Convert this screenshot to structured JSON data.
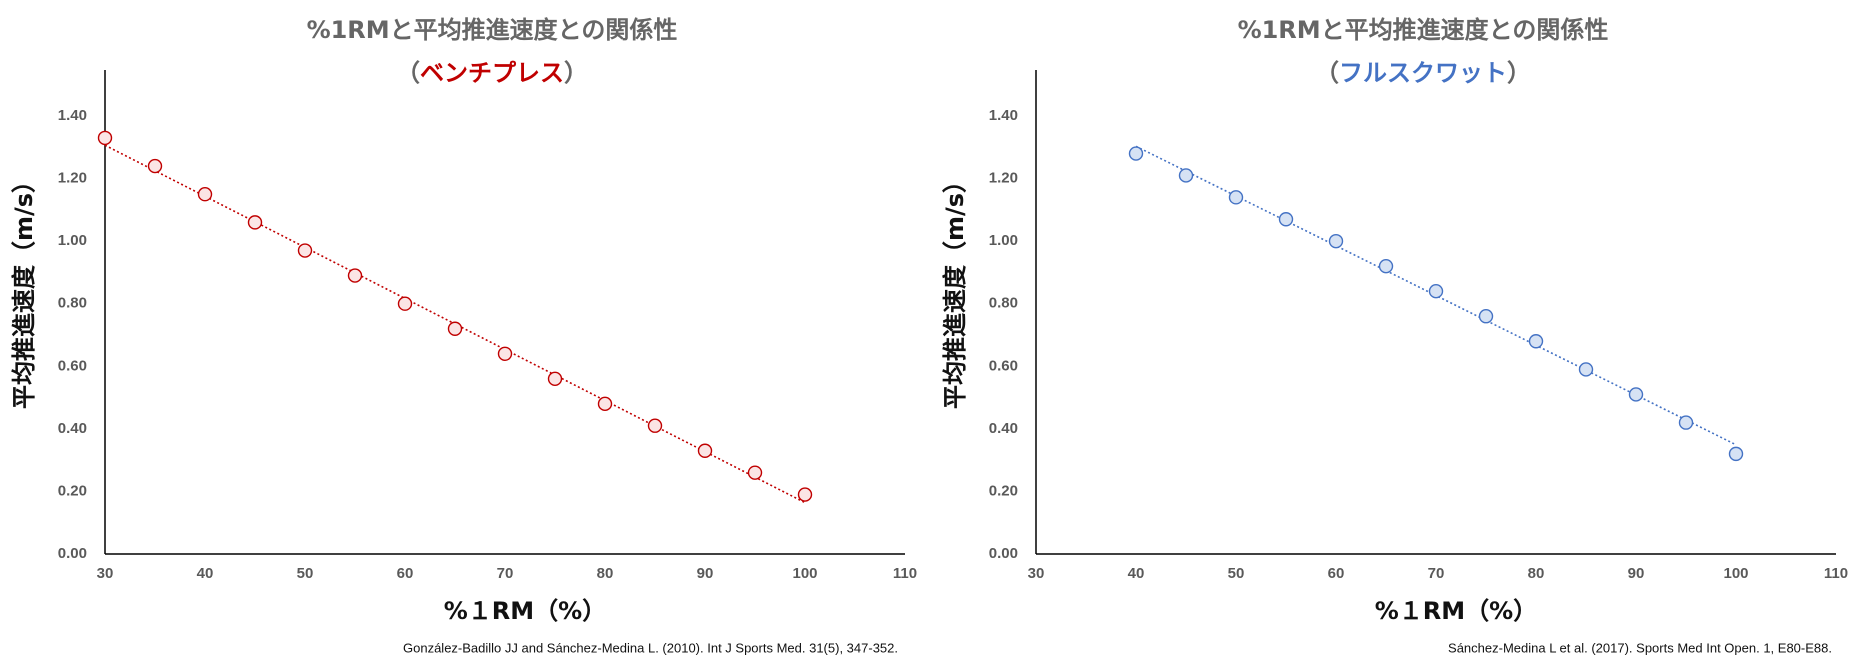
{
  "colors": {
    "bench": "#c00000",
    "bench_fill": "#fbe5e5",
    "squat": "#4472c4",
    "squat_fill": "#d6e2f4",
    "title_gray": "#666666",
    "axis": "#000000"
  },
  "chart_data": [
    {
      "type": "scatter",
      "title": "%1RMと平均推進速度との関係性",
      "subtitle_open": "（",
      "subtitle_highlight": "ベンチプレス",
      "subtitle_close": "）",
      "xlabel": "%１RM（%）",
      "ylabel": "平均推進速度（m/s）",
      "xlim": [
        30,
        110
      ],
      "ylim": [
        0,
        1.4
      ],
      "x_ticks": [
        30,
        40,
        50,
        60,
        70,
        80,
        90,
        100,
        110
      ],
      "y_ticks": [
        "0.00",
        "0.20",
        "0.40",
        "0.60",
        "0.80",
        "1.00",
        "1.20",
        "1.40"
      ],
      "grid": false,
      "trendline": "linear",
      "x": [
        30,
        35,
        40,
        45,
        50,
        55,
        60,
        65,
        70,
        75,
        80,
        85,
        90,
        95,
        100
      ],
      "y": [
        1.33,
        1.24,
        1.15,
        1.06,
        0.97,
        0.89,
        0.8,
        0.72,
        0.64,
        0.56,
        0.48,
        0.41,
        0.33,
        0.26,
        0.19
      ],
      "citation": "González-Badillo JJ and Sánchez-Medina L. (2010). Int J Sports Med. 31(5), 347-352."
    },
    {
      "type": "scatter",
      "title": "%1RMと平均推進速度との関係性",
      "subtitle_open": "（",
      "subtitle_highlight": "フルスクワット",
      "subtitle_close": "）",
      "xlabel": "%１RM（%）",
      "ylabel": "平均推進速度（m/s）",
      "xlim": [
        30,
        110
      ],
      "ylim": [
        0,
        1.4
      ],
      "x_ticks": [
        30,
        40,
        50,
        60,
        70,
        80,
        90,
        100,
        110
      ],
      "y_ticks": [
        "0.00",
        "0.20",
        "0.40",
        "0.60",
        "0.80",
        "1.00",
        "1.20",
        "1.40"
      ],
      "grid": false,
      "trendline": "linear",
      "x": [
        40,
        45,
        50,
        55,
        60,
        65,
        70,
        75,
        80,
        85,
        90,
        95,
        100
      ],
      "y": [
        1.28,
        1.21,
        1.14,
        1.07,
        1.0,
        0.92,
        0.84,
        0.76,
        0.68,
        0.59,
        0.51,
        0.42,
        0.32
      ],
      "citation": "Sánchez-Medina L et al. (2017). Sports Med Int Open. 1, E80-E88."
    }
  ]
}
